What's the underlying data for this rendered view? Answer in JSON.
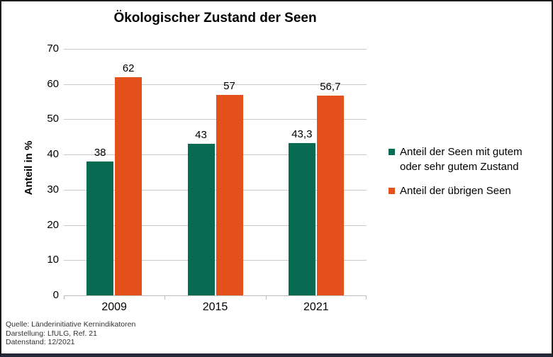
{
  "chart_data": {
    "type": "bar",
    "title": "Ökologischer Zustand der Seen",
    "categories": [
      "2009",
      "2015",
      "2021"
    ],
    "series": [
      {
        "name": "Anteil der Seen mit gutem oder sehr gutem Zustand",
        "color": "#076b53",
        "values": [
          38,
          43,
          43.3
        ],
        "labels": [
          "38",
          "43",
          "43,3"
        ]
      },
      {
        "name": "Anteil der übrigen Seen",
        "color": "#e5511d",
        "values": [
          62,
          57,
          56.7
        ],
        "labels": [
          "62",
          "57",
          "56,7"
        ]
      }
    ],
    "xlabel": "",
    "ylabel": "Anteil in %",
    "ylim": [
      0,
      70
    ],
    "ytick_step": 10,
    "yticks": [
      "0",
      "10",
      "20",
      "30",
      "40",
      "50",
      "60",
      "70"
    ],
    "grid": true,
    "legend_position": "right",
    "gridline_color": "#c9c9c9",
    "axis_color": "#bfbfbf"
  },
  "legend": {
    "items": [
      {
        "label": "Anteil der Seen mit gutem\noder sehr gutem Zustand",
        "color": "#076b53"
      },
      {
        "label": "Anteil der übrigen Seen",
        "color": "#e5511d"
      }
    ]
  },
  "footer": {
    "lines": [
      "Quelle: Länderinitiative Kernindikatoren",
      "Darstellung: LfULG, Ref. 21",
      "Datenstand: 12/2021"
    ]
  },
  "window": {
    "bottom_bar_color": "#242a39"
  }
}
